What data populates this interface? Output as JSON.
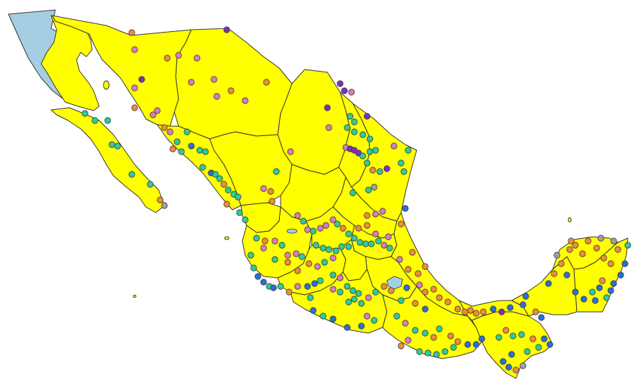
{
  "map": {
    "colors": {
      "land": "#ffff00",
      "sea": "#a6cee3",
      "border": "#333333",
      "background": "#ffffff"
    },
    "marker_classes": [
      {
        "key": "a",
        "color": "#2ecc9a"
      },
      {
        "key": "b",
        "color": "#2a6fd6"
      },
      {
        "key": "c",
        "color": "#d97cc0"
      },
      {
        "key": "d",
        "color": "#f28a3c"
      },
      {
        "key": "e",
        "color": "#7b2fbf"
      },
      {
        "key": "f",
        "color": "#a0a0a0"
      }
    ]
  }
}
